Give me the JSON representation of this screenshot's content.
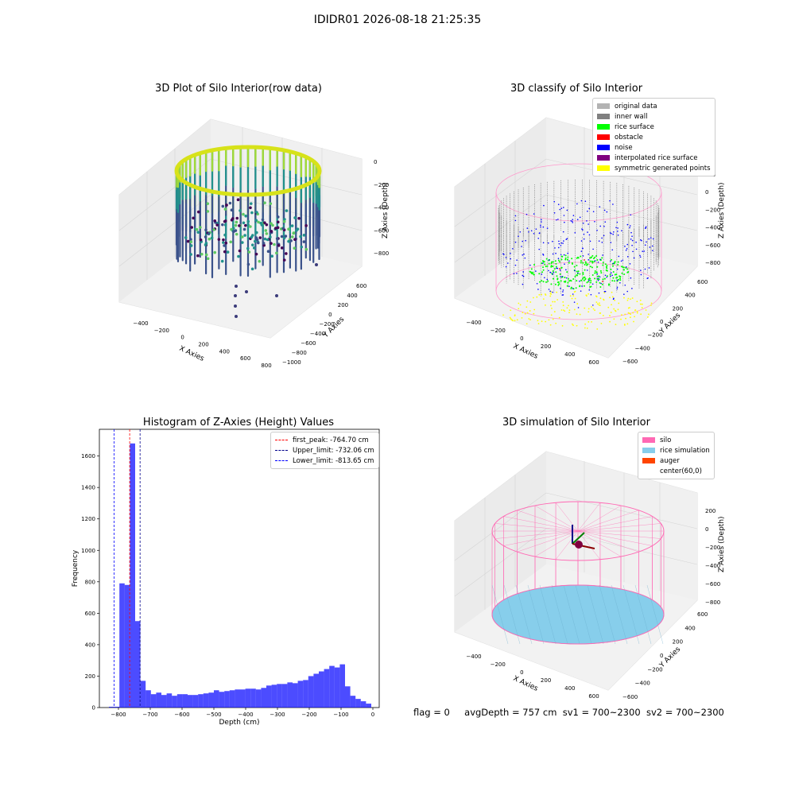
{
  "figure_title": "IDIDR01 2026-08-18 21:25:35",
  "status": {
    "flag": "flag = 0",
    "avg_depth": "avgDepth = 757 cm",
    "sv1": "sv1 = 700~2300",
    "sv2": "sv2 = 700~2300"
  },
  "panels": {
    "raw": {
      "title": "3D Plot of Silo Interior(row data)",
      "xlabel": "X Axies",
      "ylabel": "Y Axies",
      "zlabel": "Z Axies (Depth)",
      "xticks": [
        "−400",
        "−200",
        "0",
        "200",
        "400",
        "600",
        "800"
      ],
      "yticks": [
        "600",
        "400",
        "200",
        "0",
        "−200",
        "−400",
        "−600",
        "−800",
        "−1000"
      ],
      "zticks": [
        "0",
        "−200",
        "−400",
        "−600",
        "−800"
      ]
    },
    "classify": {
      "title": "3D classify of Silo Interior",
      "xlabel": "X Axies",
      "ylabel": "Y Axies",
      "zlabel": "Z Axies (Depth)",
      "xticks": [
        "−400",
        "−200",
        "0",
        "200",
        "400",
        "600"
      ],
      "yticks": [
        "600",
        "400",
        "200",
        "0",
        "−200",
        "−400",
        "−600"
      ],
      "zticks": [
        "200",
        "0",
        "−200",
        "−400",
        "−600",
        "−800"
      ],
      "legend": [
        {
          "label": "original data",
          "color": "#b3b3b3"
        },
        {
          "label": "inner wall",
          "color": "#808080"
        },
        {
          "label": "rice surface",
          "color": "#00ff00"
        },
        {
          "label": "obstacle",
          "color": "#ff0000"
        },
        {
          "label": "noise",
          "color": "#0000ff"
        },
        {
          "label": "interpolated rice surface",
          "color": "#800080"
        },
        {
          "label": "symmetric generated points",
          "color": "#ffff00"
        }
      ]
    },
    "simulation": {
      "title": "3D simulation of Silo Interior",
      "xlabel": "X Axies",
      "ylabel": "Y Axies",
      "zlabel": "Z Axies (Depth)",
      "xticks": [
        "−400",
        "−200",
        "0",
        "200",
        "400",
        "600"
      ],
      "yticks": [
        "600",
        "400",
        "200",
        "0",
        "−200",
        "−400",
        "−600"
      ],
      "zticks": [
        "200",
        "0",
        "−200",
        "−400",
        "−600",
        "−800"
      ],
      "legend": [
        {
          "label": "silo",
          "color": "#ff69b4"
        },
        {
          "label": "rice simulation",
          "color": "#87ceeb"
        },
        {
          "label": "auger",
          "color": "#ff4500"
        },
        {
          "label": "center(60,0)",
          "color": ""
        }
      ]
    }
  },
  "chart_data": {
    "type": "bar",
    "title": "Histogram of Z-Axies (Height) Values",
    "xlabel": "Depth (cm)",
    "ylabel": "Frequency",
    "xlim": [
      -860,
      20
    ],
    "ylim": [
      0,
      1770
    ],
    "xticks": [
      -800,
      -700,
      -600,
      -500,
      -400,
      -300,
      -200,
      -100,
      0
    ],
    "yticks": [
      0,
      200,
      400,
      600,
      800,
      1000,
      1200,
      1400,
      1600
    ],
    "bin_width": 16.5,
    "bin_starts": [
      -830,
      -813.5,
      -797,
      -780.5,
      -764,
      -747.5,
      -731,
      -714.5,
      -698,
      -681.5,
      -665,
      -648.5,
      -632,
      -615.5,
      -599,
      -582.5,
      -566,
      -549.5,
      -533,
      -516.5,
      -500,
      -483.5,
      -467,
      -450.5,
      -434,
      -417.5,
      -401,
      -384.5,
      -368,
      -351.5,
      -335,
      -318.5,
      -302,
      -285.5,
      -269,
      -252.5,
      -236,
      -219.5,
      -203,
      -186.5,
      -170,
      -153.5,
      -137,
      -120.5,
      -104,
      -87.5,
      -71,
      -54.5,
      -38,
      -21.5
    ],
    "values": [
      5,
      5,
      790,
      780,
      1680,
      550,
      170,
      110,
      85,
      95,
      80,
      90,
      75,
      85,
      85,
      80,
      80,
      85,
      90,
      95,
      110,
      100,
      105,
      110,
      115,
      115,
      120,
      120,
      115,
      125,
      140,
      145,
      150,
      150,
      160,
      155,
      170,
      175,
      200,
      215,
      230,
      245,
      265,
      255,
      275,
      135,
      75,
      55,
      40,
      25
    ],
    "lines": [
      {
        "name": "first_peak: -764.70 cm",
        "x": -764.7,
        "color": "#ff0000"
      },
      {
        "name": "Upper_limit: -732.06 cm",
        "x": -732.06,
        "color": "#00008b"
      },
      {
        "name": "Lower_limit: -813.65 cm",
        "x": -813.65,
        "color": "#0000ff"
      }
    ],
    "bar_color": "#0000ff",
    "legend_position": "upper right"
  }
}
